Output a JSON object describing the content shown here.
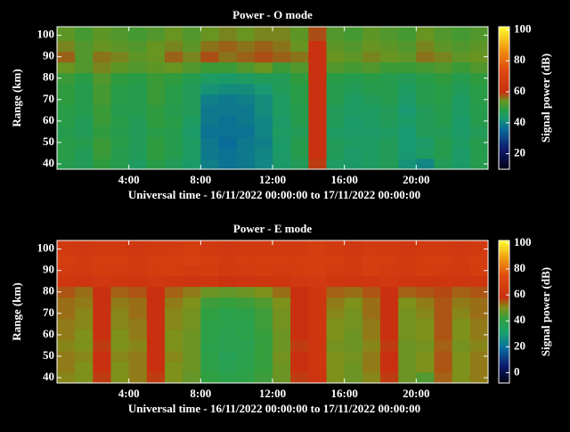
{
  "chart_data": [
    {
      "type": "heatmap",
      "title": "Power - O mode",
      "ylabel": "Range (km)",
      "xlabel": "Universal time - 16/11/2022 00:00:00 to 17/11/2022 00:00:00",
      "colorbar_label": "Signal power (dB)",
      "x": [
        0.5,
        1.5,
        2.5,
        3.5,
        4.5,
        5.5,
        6.5,
        7.5,
        8.5,
        9.5,
        10.5,
        11.5,
        12.5,
        13.5,
        14.5,
        15.5,
        16.5,
        17.5,
        18.5,
        19.5,
        20.5,
        21.5,
        22.5,
        23.5
      ],
      "y": [
        40,
        45,
        50,
        55,
        60,
        65,
        70,
        75,
        80,
        85,
        90,
        95,
        100
      ],
      "values": [
        [
          47,
          46,
          49,
          47,
          45,
          48,
          46,
          44,
          39,
          37,
          38,
          40,
          44,
          46,
          59,
          45,
          44,
          45,
          46,
          42,
          40,
          46,
          44,
          47
        ],
        [
          48,
          46,
          50,
          47,
          46,
          49,
          47,
          45,
          38,
          37,
          38,
          40,
          44,
          47,
          60,
          46,
          44,
          45,
          46,
          43,
          45,
          47,
          44,
          47
        ],
        [
          48,
          47,
          50,
          48,
          46,
          49,
          47,
          45,
          38,
          36,
          38,
          39,
          44,
          47,
          60,
          46,
          45,
          45,
          46,
          43,
          44,
          47,
          45,
          47
        ],
        [
          47,
          46,
          49,
          47,
          46,
          48,
          47,
          44,
          37,
          37,
          37,
          40,
          45,
          46,
          60,
          45,
          44,
          44,
          45,
          43,
          46,
          46,
          44,
          46
        ],
        [
          48,
          46,
          50,
          48,
          46,
          49,
          48,
          45,
          38,
          37,
          38,
          40,
          44,
          47,
          60,
          46,
          44,
          45,
          46,
          44,
          46,
          47,
          44,
          47
        ],
        [
          48,
          47,
          50,
          47,
          47,
          49,
          47,
          46,
          38,
          38,
          38,
          41,
          45,
          47,
          60,
          46,
          45,
          45,
          46,
          43,
          46,
          47,
          45,
          47
        ],
        [
          49,
          47,
          51,
          48,
          47,
          50,
          48,
          46,
          39,
          38,
          39,
          41,
          45,
          48,
          60,
          47,
          45,
          46,
          47,
          44,
          47,
          48,
          45,
          48
        ],
        [
          49,
          47,
          51,
          48,
          47,
          50,
          48,
          46,
          42,
          41,
          41,
          43,
          46,
          48,
          60,
          47,
          46,
          47,
          47,
          45,
          47,
          48,
          46,
          48
        ],
        [
          50,
          48,
          52,
          49,
          48,
          50,
          49,
          47,
          45,
          44,
          45,
          46,
          46,
          49,
          60,
          48,
          47,
          48,
          47,
          46,
          48,
          49,
          47,
          49
        ],
        [
          54,
          52,
          55,
          53,
          52,
          53,
          54,
          52,
          50,
          50,
          52,
          54,
          50,
          52,
          60,
          52,
          51,
          52,
          50,
          50,
          51,
          52,
          50,
          52
        ],
        [
          57,
          52,
          56,
          55,
          53,
          54,
          57,
          55,
          58,
          56,
          57,
          58,
          57,
          56,
          60,
          54,
          53,
          55,
          54,
          53,
          56,
          55,
          53,
          54
        ],
        [
          55,
          52,
          54,
          53,
          52,
          54,
          55,
          53,
          56,
          57,
          56,
          57,
          56,
          54,
          60,
          53,
          52,
          54,
          53,
          52,
          55,
          53,
          52,
          53
        ],
        [
          53,
          51,
          53,
          52,
          51,
          52,
          54,
          52,
          54,
          55,
          54,
          55,
          55,
          53,
          58,
          52,
          51,
          53,
          52,
          51,
          54,
          52,
          51,
          52
        ]
      ],
      "xlim": [
        0,
        24
      ],
      "ylim": [
        37.5,
        104
      ],
      "xticks": [
        {
          "value": 4,
          "label": "4:00"
        },
        {
          "value": 8,
          "label": "8:00"
        },
        {
          "value": 12,
          "label": "12:00"
        },
        {
          "value": 16,
          "label": "16:00"
        },
        {
          "value": 20,
          "label": "20:00"
        }
      ],
      "yticks": [
        40,
        50,
        60,
        70,
        80,
        90,
        100
      ],
      "clim": [
        10,
        102
      ],
      "cticks": [
        20,
        40,
        60,
        80,
        100
      ],
      "colormap": [
        [
          0,
          "#000018"
        ],
        [
          0.15,
          "#101e70"
        ],
        [
          0.28,
          "#0a6a9a"
        ],
        [
          0.36,
          "#189a70"
        ],
        [
          0.42,
          "#2a9c40"
        ],
        [
          0.48,
          "#6a9420"
        ],
        [
          0.54,
          "#c83010"
        ],
        [
          0.7,
          "#e04a10"
        ],
        [
          0.85,
          "#f09a10"
        ],
        [
          1,
          "#ffff30"
        ]
      ]
    },
    {
      "type": "heatmap",
      "title": "Power - E mode",
      "ylabel": "Range (km)",
      "xlabel": "Universal time - 16/11/2022 00:00:00 to 17/11/2022 00:00:00",
      "colorbar_label": "Signal power (dB)",
      "x": [
        0.5,
        1.5,
        2.5,
        3.5,
        4.5,
        5.5,
        6.5,
        7.5,
        8.5,
        9.5,
        10.5,
        11.5,
        12.5,
        13.5,
        14.5,
        15.5,
        16.5,
        17.5,
        18.5,
        19.5,
        20.5,
        21.5,
        22.5,
        23.5
      ],
      "y": [
        40,
        45,
        50,
        55,
        60,
        65,
        70,
        75,
        80,
        85,
        90,
        95,
        100
      ],
      "values": [
        [
          51,
          50,
          57,
          50,
          52,
          57,
          50,
          47,
          41,
          39,
          40,
          43,
          48,
          57,
          61,
          50,
          48,
          51,
          57,
          48,
          45,
          54,
          50,
          52
        ],
        [
          52,
          50,
          58,
          50,
          52,
          58,
          50,
          48,
          40,
          38,
          39,
          42,
          48,
          58,
          62,
          50,
          48,
          52,
          58,
          48,
          50,
          55,
          50,
          52
        ],
        [
          52,
          51,
          58,
          51,
          52,
          58,
          51,
          48,
          40,
          37,
          39,
          42,
          49,
          58,
          62,
          50,
          49,
          52,
          58,
          48,
          50,
          55,
          50,
          52
        ],
        [
          51,
          50,
          57,
          50,
          51,
          58,
          50,
          48,
          39,
          38,
          38,
          42,
          48,
          57,
          62,
          49,
          48,
          51,
          57,
          48,
          49,
          54,
          49,
          51
        ],
        [
          52,
          50,
          58,
          50,
          52,
          58,
          50,
          48,
          40,
          38,
          39,
          42,
          48,
          58,
          62,
          50,
          48,
          52,
          58,
          49,
          50,
          55,
          50,
          52
        ],
        [
          52,
          51,
          58,
          51,
          52,
          58,
          51,
          49,
          40,
          39,
          39,
          43,
          49,
          58,
          62,
          50,
          49,
          52,
          58,
          49,
          50,
          55,
          50,
          52
        ],
        [
          53,
          51,
          58,
          51,
          53,
          58,
          51,
          49,
          41,
          39,
          40,
          43,
          49,
          58,
          62,
          51,
          49,
          53,
          58,
          49,
          51,
          55,
          51,
          53
        ],
        [
          53,
          52,
          58,
          52,
          53,
          58,
          52,
          50,
          43,
          42,
          43,
          45,
          50,
          58,
          62,
          52,
          50,
          53,
          58,
          50,
          52,
          55,
          52,
          53
        ],
        [
          55,
          53,
          58,
          54,
          55,
          58,
          54,
          52,
          48,
          47,
          48,
          50,
          53,
          58,
          62,
          54,
          53,
          55,
          58,
          54,
          55,
          56,
          54,
          55
        ],
        [
          62,
          61,
          63,
          62,
          61,
          63,
          62,
          61,
          62,
          60,
          61,
          62,
          62,
          63,
          64,
          62,
          61,
          62,
          63,
          62,
          61,
          62,
          61,
          62
        ],
        [
          65,
          64,
          66,
          65,
          64,
          66,
          66,
          65,
          66,
          64,
          65,
          66,
          65,
          66,
          67,
          65,
          64,
          66,
          65,
          64,
          66,
          65,
          64,
          66
        ],
        [
          66,
          65,
          66,
          66,
          65,
          66,
          67,
          68,
          66,
          65,
          66,
          66,
          66,
          66,
          67,
          66,
          65,
          67,
          66,
          65,
          66,
          66,
          65,
          66
        ],
        [
          64,
          63,
          64,
          64,
          63,
          64,
          65,
          66,
          64,
          63,
          64,
          64,
          64,
          65,
          66,
          64,
          63,
          65,
          64,
          63,
          64,
          64,
          63,
          64
        ]
      ],
      "xlim": [
        0,
        24
      ],
      "ylim": [
        37.5,
        104
      ],
      "xticks": [
        {
          "value": 4,
          "label": "4:00"
        },
        {
          "value": 8,
          "label": "8:00"
        },
        {
          "value": 12,
          "label": "12:00"
        },
        {
          "value": 16,
          "label": "16:00"
        },
        {
          "value": 20,
          "label": "20:00"
        }
      ],
      "yticks": [
        40,
        50,
        60,
        70,
        80,
        90,
        100
      ],
      "clim": [
        -8,
        102
      ],
      "cticks": [
        0,
        20,
        40,
        60,
        80,
        100
      ],
      "colormap": [
        [
          0,
          "#000010"
        ],
        [
          0.12,
          "#0c1a70"
        ],
        [
          0.25,
          "#0a70a0"
        ],
        [
          0.35,
          "#18a070"
        ],
        [
          0.45,
          "#30a040"
        ],
        [
          0.53,
          "#80901a"
        ],
        [
          0.6,
          "#c83010"
        ],
        [
          0.75,
          "#e04a10"
        ],
        [
          0.88,
          "#f0a010"
        ],
        [
          1,
          "#ffff30"
        ]
      ]
    }
  ]
}
